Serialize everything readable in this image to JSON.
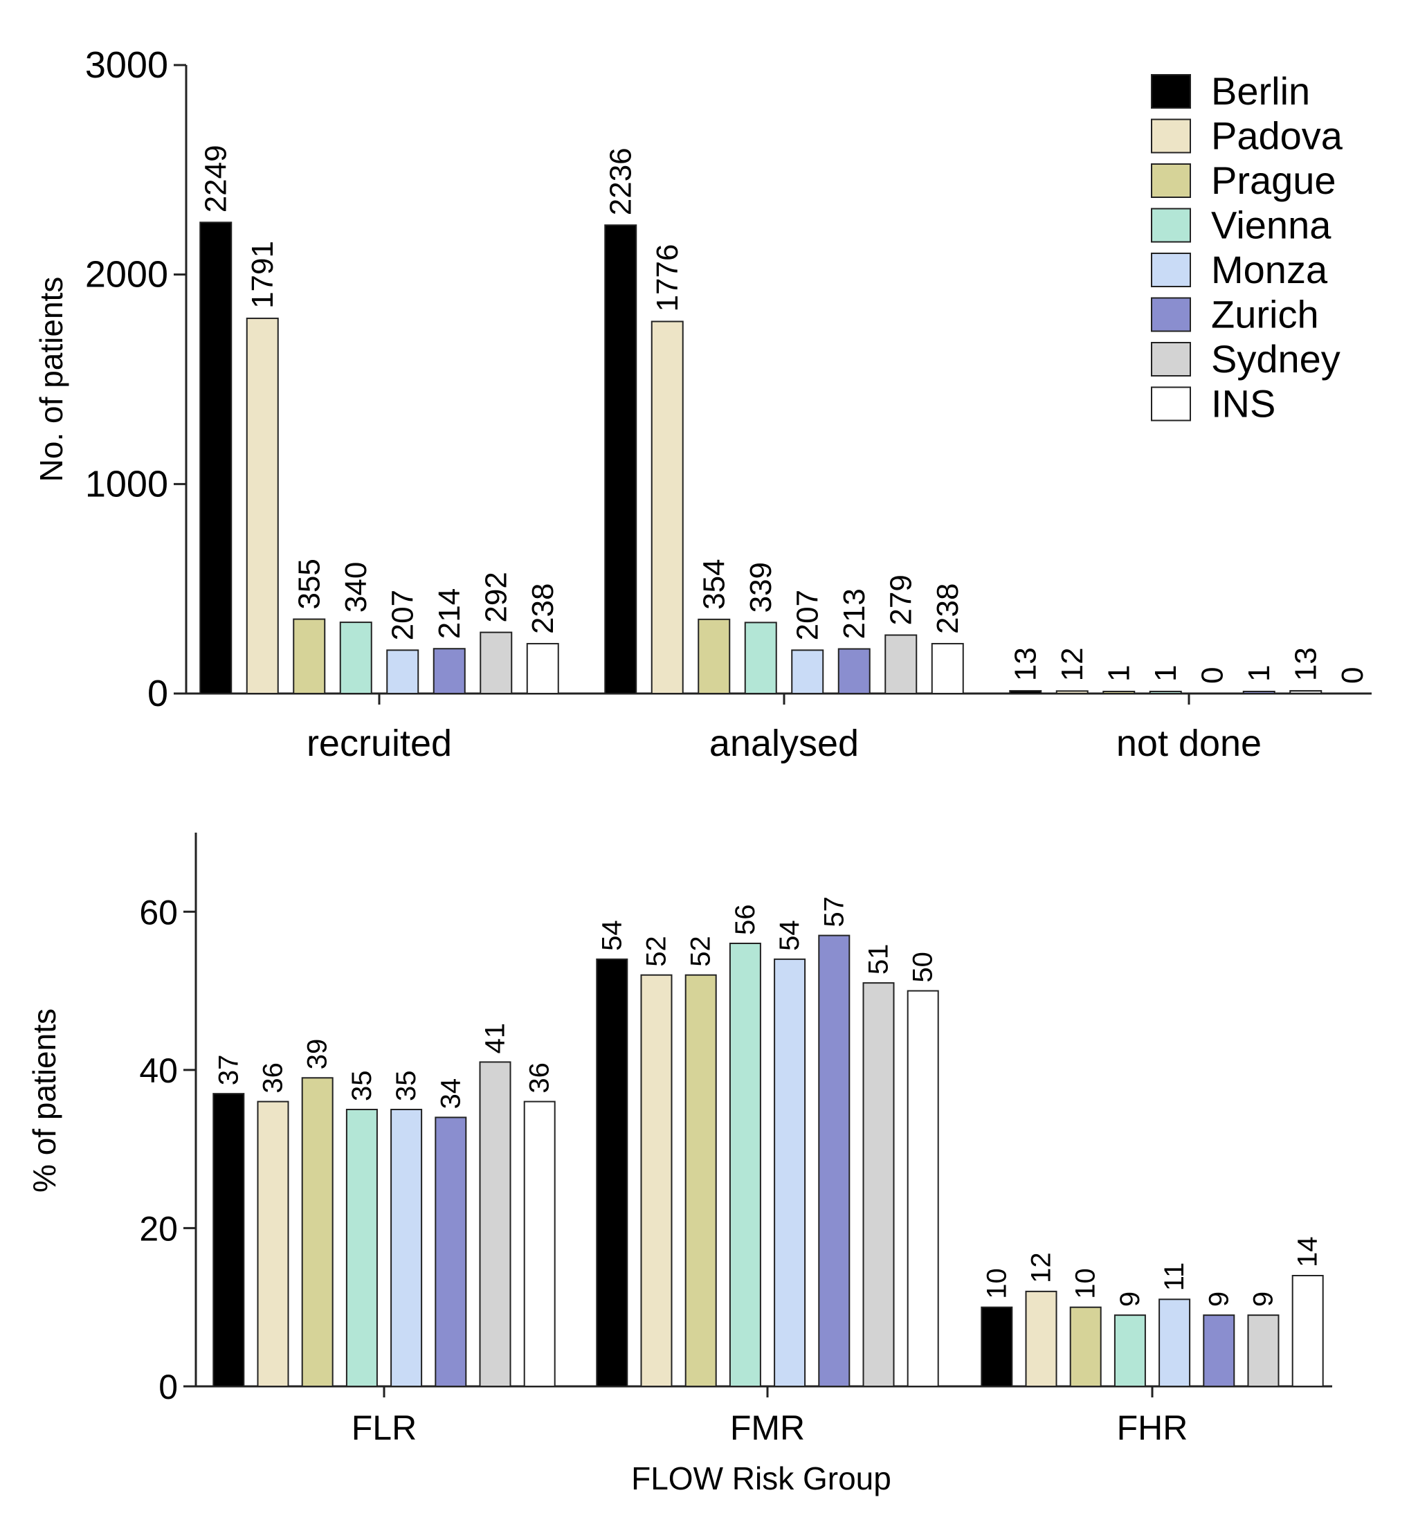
{
  "series_names": [
    "Berlin",
    "Padova",
    "Prague",
    "Vienna",
    "Monza",
    "Zurich",
    "Sydney",
    "INS"
  ],
  "series_colors": [
    "#000000",
    "#ede4c6",
    "#d6d398",
    "#b3e6d6",
    "#c9dbf6",
    "#8a8ecf",
    "#d3d3d3",
    "#ffffff"
  ],
  "chart_data": [
    {
      "type": "bar",
      "title": "",
      "xlabel": "",
      "ylabel": "No. of patients",
      "ylim": [
        0,
        3000
      ],
      "yticks": [
        "0",
        "1000",
        "2000",
        "3000"
      ],
      "legend": "top-right",
      "categories": [
        "recruited",
        "analysed",
        "not done"
      ],
      "series": [
        {
          "name": "Berlin",
          "values": [
            2249,
            2236,
            13
          ]
        },
        {
          "name": "Padova",
          "values": [
            1791,
            1776,
            12
          ]
        },
        {
          "name": "Prague",
          "values": [
            355,
            354,
            1
          ]
        },
        {
          "name": "Vienna",
          "values": [
            340,
            339,
            1
          ]
        },
        {
          "name": "Monza",
          "values": [
            207,
            207,
            0
          ]
        },
        {
          "name": "Zurich",
          "values": [
            214,
            213,
            1
          ]
        },
        {
          "name": "Sydney",
          "values": [
            292,
            279,
            13
          ]
        },
        {
          "name": "INS",
          "values": [
            238,
            238,
            0
          ]
        }
      ]
    },
    {
      "type": "bar",
      "title": "",
      "xlabel": "FLOW Risk Group",
      "ylabel": "% of patients",
      "ylim": [
        0,
        70
      ],
      "yticks": [
        "0",
        "20",
        "40",
        "60"
      ],
      "categories": [
        "FLR",
        "FMR",
        "FHR"
      ],
      "series": [
        {
          "name": "Berlin",
          "values": [
            37,
            54,
            10
          ]
        },
        {
          "name": "Padova",
          "values": [
            36,
            52,
            12
          ]
        },
        {
          "name": "Prague",
          "values": [
            39,
            52,
            10
          ]
        },
        {
          "name": "Vienna",
          "values": [
            35,
            56,
            9
          ]
        },
        {
          "name": "Monza",
          "values": [
            35,
            54,
            11
          ]
        },
        {
          "name": "Zurich",
          "values": [
            34,
            57,
            9
          ]
        },
        {
          "name": "Sydney",
          "values": [
            41,
            51,
            9
          ]
        },
        {
          "name": "INS",
          "values": [
            36,
            50,
            14
          ]
        }
      ]
    }
  ]
}
